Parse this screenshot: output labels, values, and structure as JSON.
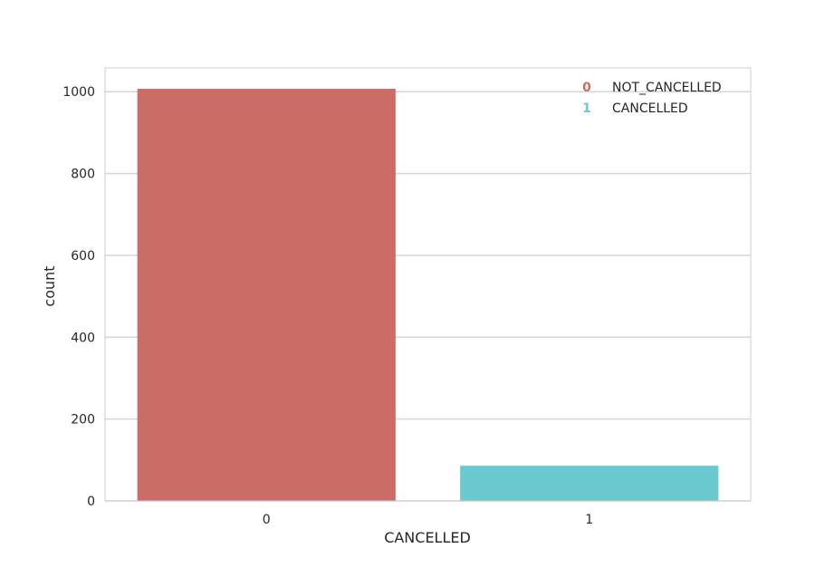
{
  "chart_data": {
    "type": "bar",
    "title": "",
    "xlabel": "CANCELLED",
    "ylabel": "count",
    "categories": [
      "0",
      "1"
    ],
    "values": [
      1007,
      86
    ],
    "colors": [
      "#cc6c66",
      "#6ac8cf"
    ],
    "ylim": [
      0,
      1058
    ],
    "yticks": [
      0,
      200,
      400,
      600,
      800,
      1000
    ],
    "grid": true,
    "legend": {
      "placement": "top-right",
      "entries": [
        {
          "marker": "0",
          "label": "NOT_CANCELLED",
          "color": "#cc6c66"
        },
        {
          "marker": "1",
          "label": "CANCELLED",
          "color": "#6ac8cf"
        }
      ]
    }
  }
}
